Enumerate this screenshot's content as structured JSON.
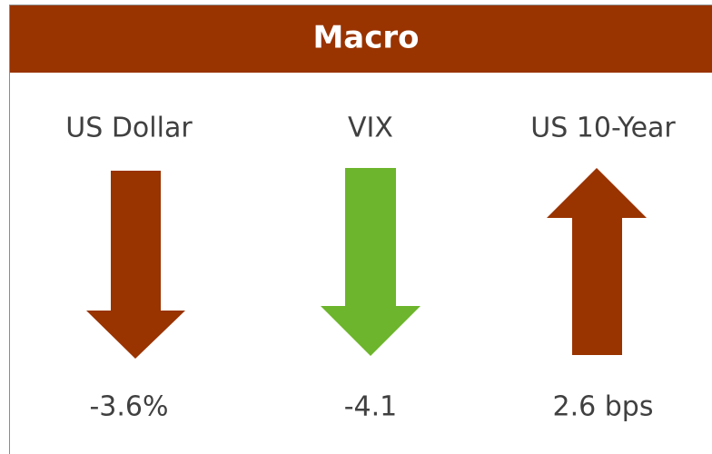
{
  "header": {
    "title": "Macro"
  },
  "items": [
    {
      "label": "US Dollar",
      "value": "-3.6%"
    },
    {
      "label": "VIX",
      "value": "-4.1"
    },
    {
      "label": "US 10-Year",
      "value": "2.6 bps"
    }
  ]
}
